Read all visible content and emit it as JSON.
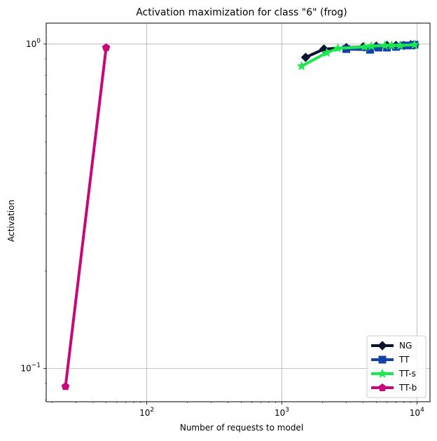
{
  "chart_data": {
    "type": "line",
    "title": "Activation maximization for class \"6\" (frog)",
    "xlabel": "Number of requests to model",
    "ylabel": "Activation",
    "xscale": "log",
    "yscale": "log",
    "xlim": [
      18,
      12500
    ],
    "ylim": [
      0.079,
      1.16
    ],
    "grid": true,
    "legend_position": "lower-right",
    "xticks": [
      {
        "value": 100,
        "base": "10",
        "exp": "2"
      },
      {
        "value": 1000,
        "base": "10",
        "exp": "3"
      },
      {
        "value": 10000,
        "base": "10",
        "exp": "4"
      }
    ],
    "yticks": [
      {
        "value": 0.1,
        "base": "10",
        "exp": "−1"
      },
      {
        "value": 1,
        "base": "10",
        "exp": "0"
      }
    ],
    "series": [
      {
        "name": "NG",
        "color": "#0b1230",
        "marker": "diamond",
        "x": [
          1500,
          2050,
          3000,
          4000,
          5000,
          6000,
          7000,
          8000,
          9000,
          9600
        ],
        "y": [
          0.91,
          0.965,
          0.975,
          0.98,
          0.985,
          0.99,
          0.99,
          0.99,
          0.995,
          0.995
        ]
      },
      {
        "name": "TT",
        "color": "#1342a8",
        "marker": "square",
        "x": [
          3000,
          4500,
          5200,
          6000,
          7000,
          8000,
          9000,
          9600
        ],
        "y": [
          0.965,
          0.96,
          0.975,
          0.975,
          0.98,
          0.99,
          0.99,
          0.995
        ]
      },
      {
        "name": "TT-s",
        "color": "#1be84f",
        "marker": "star",
        "x": [
          1400,
          2150,
          2600,
          4100,
          4600,
          5800,
          6500,
          7500,
          9600
        ],
        "y": [
          0.855,
          0.94,
          0.97,
          0.98,
          0.985,
          0.99,
          0.99,
          0.99,
          0.995
        ]
      },
      {
        "name": "TT-b",
        "color": "#c8087a",
        "marker": "pentagon",
        "x": [
          25,
          50
        ],
        "y": [
          0.088,
          0.975
        ]
      }
    ]
  }
}
